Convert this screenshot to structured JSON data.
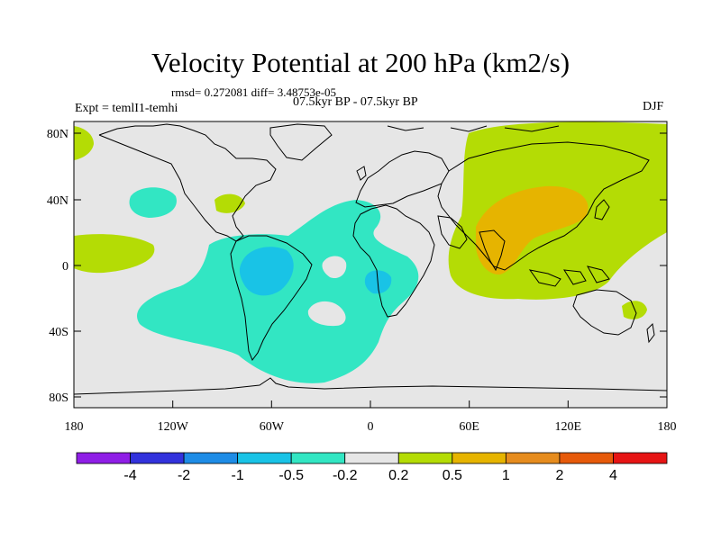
{
  "title": "Velocity Potential at 200 hPa (km2/s)",
  "subtitle_stats": "rmsd= 0.272081 diff= 3.48753e-05",
  "subtitle_period": "07.5kyr BP - 07.5kyr BP",
  "experiment": "Expt = temlI1-temhi",
  "season": "DJF",
  "y_axis_labels": [
    "80N",
    "40N",
    "0",
    "40S",
    "80S"
  ],
  "x_axis_labels": [
    "180",
    "120W",
    "60W",
    "0",
    "60E",
    "120E",
    "180"
  ],
  "colorbar": {
    "labels": [
      "-4",
      "-2",
      "-1",
      "-0.5",
      "-0.2",
      "0.2",
      "0.5",
      "1",
      "2",
      "4"
    ],
    "colors": [
      "#8f1ee6",
      "#3232dc",
      "#1e8ce6",
      "#19c3e6",
      "#32e6c3",
      "#e6e6e6",
      "#b4dc05",
      "#e6b400",
      "#e68c1e",
      "#e65a0a",
      "#e61414"
    ]
  },
  "colors": {
    "background": "#e6e6e6",
    "cyan": "#32e6c3",
    "light_blue": "#19c3e6",
    "yellow_green": "#b4dc05",
    "orange": "#e6b400",
    "coast": "#000000"
  }
}
